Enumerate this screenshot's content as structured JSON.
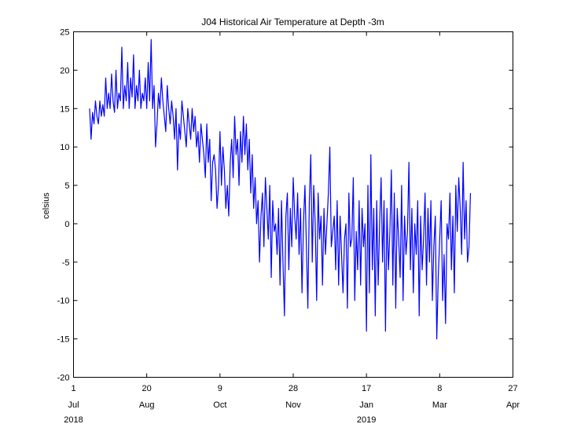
{
  "chart_data": {
    "type": "line",
    "title": "J04 Historical Air Temperature at Depth -3m",
    "xlabel": "",
    "ylabel": "celsius",
    "ylim": [
      -20,
      25
    ],
    "xlim": [
      "2018-07-01",
      "2019-04-27"
    ],
    "grid": false,
    "legend": "none",
    "series_color": "#0000ff",
    "y_ticks": [
      {
        "value": -20,
        "label": "-20"
      },
      {
        "value": -15,
        "label": "-15"
      },
      {
        "value": -10,
        "label": "-10"
      },
      {
        "value": -5,
        "label": "-5"
      },
      {
        "value": 0,
        "label": "0"
      },
      {
        "value": 5,
        "label": "5"
      },
      {
        "value": 10,
        "label": "10"
      },
      {
        "value": 15,
        "label": "15"
      },
      {
        "value": 20,
        "label": "20"
      },
      {
        "value": 25,
        "label": "25"
      }
    ],
    "x_ticks": [
      {
        "date": "2018-07-01",
        "day": "1",
        "month": "Jul",
        "year": "2018"
      },
      {
        "date": "2018-08-20",
        "day": "20",
        "month": "Aug",
        "year": ""
      },
      {
        "date": "2018-10-09",
        "day": "9",
        "month": "Oct",
        "year": ""
      },
      {
        "date": "2018-11-28",
        "day": "28",
        "month": "Nov",
        "year": ""
      },
      {
        "date": "2019-01-17",
        "day": "17",
        "month": "Jan",
        "year": "2019"
      },
      {
        "date": "2019-03-08",
        "day": "8",
        "month": "Mar",
        "year": ""
      },
      {
        "date": "2019-04-27",
        "day": "27",
        "month": "Apr",
        "year": ""
      }
    ],
    "series": [
      {
        "x": [
          "2018-07-12",
          "2018-07-13",
          "2018-07-14",
          "2018-07-15",
          "2018-07-16",
          "2018-07-17",
          "2018-07-18",
          "2018-07-19",
          "2018-07-20",
          "2018-07-21",
          "2018-07-22",
          "2018-07-23",
          "2018-07-24",
          "2018-07-25",
          "2018-07-26",
          "2018-07-27",
          "2018-07-28",
          "2018-07-29",
          "2018-07-30",
          "2018-07-31",
          "2018-08-01",
          "2018-08-02",
          "2018-08-03",
          "2018-08-04",
          "2018-08-05",
          "2018-08-06",
          "2018-08-07",
          "2018-08-08",
          "2018-08-09",
          "2018-08-10",
          "2018-08-11",
          "2018-08-12",
          "2018-08-13",
          "2018-08-14",
          "2018-08-15",
          "2018-08-16",
          "2018-08-17",
          "2018-08-18",
          "2018-08-19",
          "2018-08-20",
          "2018-08-21",
          "2018-08-22",
          "2018-08-23",
          "2018-08-24",
          "2018-08-25",
          "2018-08-26",
          "2018-08-27",
          "2018-08-28",
          "2018-08-29",
          "2018-08-30",
          "2018-08-31",
          "2018-09-01",
          "2018-09-02",
          "2018-09-03",
          "2018-09-04",
          "2018-09-05",
          "2018-09-06",
          "2018-09-07",
          "2018-09-08",
          "2018-09-09",
          "2018-09-10",
          "2018-09-11",
          "2018-09-12",
          "2018-09-13",
          "2018-09-14",
          "2018-09-15",
          "2018-09-16",
          "2018-09-17",
          "2018-09-18",
          "2018-09-19",
          "2018-09-20",
          "2018-09-21",
          "2018-09-22",
          "2018-09-23",
          "2018-09-24",
          "2018-09-25",
          "2018-09-26",
          "2018-09-27",
          "2018-09-28",
          "2018-09-29",
          "2018-09-30",
          "2018-10-01",
          "2018-10-02",
          "2018-10-03",
          "2018-10-04",
          "2018-10-05",
          "2018-10-06",
          "2018-10-07",
          "2018-10-08",
          "2018-10-09",
          "2018-10-10",
          "2018-10-11",
          "2018-10-12",
          "2018-10-13",
          "2018-10-14",
          "2018-10-15",
          "2018-10-16",
          "2018-10-17",
          "2018-10-18",
          "2018-10-19",
          "2018-10-20",
          "2018-10-21",
          "2018-10-22",
          "2018-10-23",
          "2018-10-24",
          "2018-10-25",
          "2018-10-26",
          "2018-10-27",
          "2018-10-28",
          "2018-10-29",
          "2018-10-30",
          "2018-10-31",
          "2018-11-01",
          "2018-11-02",
          "2018-11-03",
          "2018-11-04",
          "2018-11-05",
          "2018-11-06",
          "2018-11-07",
          "2018-11-08",
          "2018-11-09",
          "2018-11-10",
          "2018-11-11",
          "2018-11-12",
          "2018-11-13",
          "2018-11-14",
          "2018-11-15",
          "2018-11-16",
          "2018-11-17",
          "2018-11-18",
          "2018-11-19",
          "2018-11-20",
          "2018-11-21",
          "2018-11-22",
          "2018-11-23",
          "2018-11-24",
          "2018-11-25",
          "2018-11-26",
          "2018-11-27",
          "2018-11-28",
          "2018-11-29",
          "2018-11-30",
          "2018-12-01",
          "2018-12-02",
          "2018-12-03",
          "2018-12-04",
          "2018-12-05",
          "2018-12-06",
          "2018-12-07",
          "2018-12-08",
          "2018-12-09",
          "2018-12-10",
          "2018-12-11",
          "2018-12-12",
          "2018-12-13",
          "2018-12-14",
          "2018-12-15",
          "2018-12-16",
          "2018-12-17",
          "2018-12-18",
          "2018-12-19",
          "2018-12-20",
          "2018-12-21",
          "2018-12-22",
          "2018-12-23",
          "2018-12-24",
          "2018-12-25",
          "2018-12-26",
          "2018-12-27",
          "2018-12-28",
          "2018-12-29",
          "2018-12-30",
          "2018-12-31",
          "2019-01-01",
          "2019-01-02",
          "2019-01-03",
          "2019-01-04",
          "2019-01-05",
          "2019-01-06",
          "2019-01-07",
          "2019-01-08",
          "2019-01-09",
          "2019-01-10",
          "2019-01-11",
          "2019-01-12",
          "2019-01-13",
          "2019-01-14",
          "2019-01-15",
          "2019-01-16",
          "2019-01-17",
          "2019-01-18",
          "2019-01-19",
          "2019-01-20",
          "2019-01-21",
          "2019-01-22",
          "2019-01-23",
          "2019-01-24",
          "2019-01-25",
          "2019-01-26",
          "2019-01-27",
          "2019-01-28",
          "2019-01-29",
          "2019-01-30",
          "2019-01-31",
          "2019-02-01",
          "2019-02-02",
          "2019-02-03",
          "2019-02-04",
          "2019-02-05",
          "2019-02-06",
          "2019-02-07",
          "2019-02-08",
          "2019-02-09",
          "2019-02-10",
          "2019-02-11",
          "2019-02-12",
          "2019-02-13",
          "2019-02-14",
          "2019-02-15",
          "2019-02-16",
          "2019-02-17",
          "2019-02-18",
          "2019-02-19",
          "2019-02-20",
          "2019-02-21",
          "2019-02-22",
          "2019-02-23",
          "2019-02-24",
          "2019-02-25",
          "2019-02-26",
          "2019-02-27",
          "2019-02-28",
          "2019-03-01",
          "2019-03-02",
          "2019-03-03",
          "2019-03-04",
          "2019-03-05",
          "2019-03-06",
          "2019-03-07",
          "2019-03-08",
          "2019-03-09",
          "2019-03-10",
          "2019-03-11",
          "2019-03-12",
          "2019-03-13",
          "2019-03-14",
          "2019-03-15",
          "2019-03-16",
          "2019-03-17",
          "2019-03-18",
          "2019-03-19",
          "2019-03-20",
          "2019-03-21",
          "2019-03-22",
          "2019-03-23",
          "2019-03-24",
          "2019-03-25",
          "2019-03-26",
          "2019-03-27",
          "2019-03-28",
          "2019-03-29"
        ],
        "y": [
          15,
          11,
          14.5,
          13,
          16,
          14,
          13,
          16,
          14,
          15.5,
          14,
          19,
          15,
          17,
          15,
          19.5,
          16,
          14.5,
          20,
          15,
          17,
          16,
          23,
          15,
          18,
          16,
          21,
          15,
          19,
          16.5,
          22,
          15,
          18,
          16,
          20,
          15,
          17,
          16,
          19,
          15,
          21,
          16,
          24,
          15,
          18,
          10,
          13,
          17,
          15,
          19,
          16,
          14,
          12,
          18,
          15,
          13,
          16,
          14,
          11,
          15,
          7,
          13,
          11,
          16,
          14,
          12,
          10,
          15,
          13,
          11,
          15,
          12,
          14,
          10,
          12,
          8,
          13,
          11,
          9,
          6,
          13,
          8,
          11,
          3,
          8,
          9,
          7,
          2,
          5,
          12,
          5,
          10,
          7,
          2,
          5,
          1,
          8,
          11,
          6,
          14,
          9,
          11,
          5,
          12,
          8,
          14,
          9,
          13,
          7,
          11,
          4,
          9,
          2,
          6,
          0,
          3,
          -5,
          1,
          4,
          -3,
          6,
          2,
          -2,
          5,
          -7,
          3,
          -1,
          0,
          -4,
          2,
          -8,
          3,
          -5,
          -12,
          1,
          4,
          -6,
          2,
          -3,
          6,
          1,
          -2,
          4,
          -4,
          2,
          -9,
          0,
          5,
          -3,
          -11,
          3,
          9,
          -5,
          5,
          0,
          -10,
          4,
          -2,
          1,
          -8,
          2,
          -4,
          0,
          4,
          10,
          -3,
          -1,
          1,
          -6,
          3,
          -8,
          1,
          -4,
          -9,
          -2,
          0,
          -11,
          4,
          -3,
          -2,
          6,
          -10,
          -1,
          -6,
          3,
          -8,
          2,
          -3,
          0,
          -14,
          5,
          -9,
          9,
          -6,
          2,
          -12,
          3,
          -8,
          0,
          6,
          -5,
          3,
          -14,
          2,
          -6,
          -1,
          7,
          -8,
          4,
          -11,
          2,
          -2,
          -7,
          5,
          -10,
          1,
          -4,
          -1,
          8,
          -6,
          2,
          -9,
          0,
          -4,
          3,
          -12,
          1,
          -6,
          -2,
          4,
          -8,
          2,
          -5,
          3,
          -10,
          -3,
          1,
          -15,
          -7,
          -2,
          3,
          -10,
          -4,
          -13,
          0,
          -2,
          4,
          -6,
          1,
          -9,
          5,
          -1,
          6,
          2,
          -4,
          8,
          -2,
          3,
          -5,
          -3,
          4
        ]
      }
    ]
  }
}
